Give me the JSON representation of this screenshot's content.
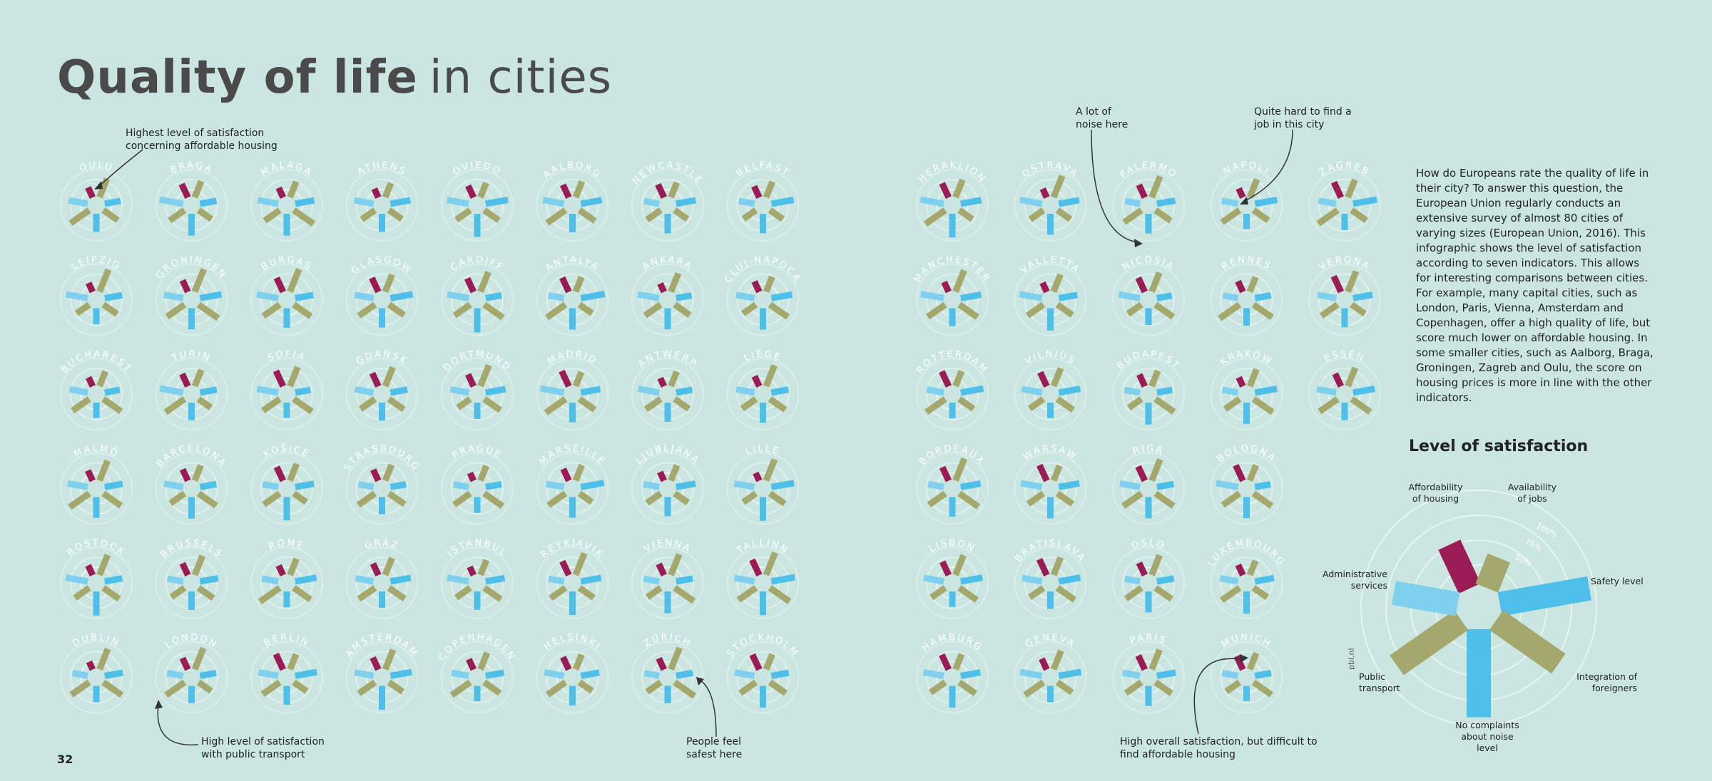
{
  "title": {
    "bold": "Quality of life",
    "light": "in cities"
  },
  "page_number": "32",
  "credit": "pbl.nl",
  "colors": {
    "background": "#cbe6e1",
    "housing": "#9b1b55",
    "olive": "#a5a86d",
    "blue": "#4ebfe9",
    "light_blue": "#7fd0ef",
    "ring": "#eaf6f4"
  },
  "indicators": [
    "Affordability of housing",
    "Availability of jobs",
    "Safety level",
    "Integration of foreigners",
    "No complaints about noise level",
    "Public transport",
    "Administrative services"
  ],
  "cities": [
    [
      "Oulu",
      "Braga",
      "Malaga",
      "Athens",
      "Oviedo",
      "Aalborg",
      "Newcastle",
      "Belfast"
    ],
    [
      "Leipzig",
      "Groningen",
      "Burgas",
      "Glasgow",
      "Cardiff",
      "Antalya",
      "Ankara",
      "Cluj-Napoca"
    ],
    [
      "Bucharest",
      "Turin",
      "Sofia",
      "Gdańsk",
      "Dortmund",
      "Madrid",
      "Antwerp",
      "Liège"
    ],
    [
      "Malmö",
      "Barcelona",
      "Košice",
      "Strasbourg",
      "Prague",
      "Marseille",
      "Ljubljana",
      "Lille"
    ],
    [
      "Rostock",
      "Brussels",
      "Rome",
      "Graz",
      "Istanbul",
      "Reykjavik",
      "Vienna",
      "Tallinn"
    ],
    [
      "Dublin",
      "London",
      "Berlin",
      "Amsterdam",
      "Copenhagen",
      "Helsinki",
      "Zürich",
      "Stockholm"
    ]
  ],
  "cities_right": [
    [
      "Heraklion",
      "Ostrava",
      "Palermo",
      "Napoli",
      "Zagreb"
    ],
    [
      "Manchester",
      "Valletta",
      "Nicosia",
      "Rennes",
      "Verona"
    ],
    [
      "Rotterdam",
      "Vilnius",
      "Budapest",
      "Kraków",
      "Essen"
    ],
    [
      "Bordeaux",
      "Warsaw",
      "Riga",
      "Bologna"
    ],
    [
      "Lisbon",
      "Bratislava",
      "Oslo",
      "Luxembourg"
    ],
    [
      "Hamburg",
      "Geneva",
      "Paris",
      "Munich"
    ]
  ],
  "annotations": {
    "oulu": "Highest level of satisfaction concerning affordable housing",
    "noise": "A lot of noise here",
    "jobs": "Quite hard to find a job in this city",
    "transport": "High level of satisfaction with public transport",
    "safest": "People feel safest here",
    "munich": "High overall satisfaction, but difficult to find affordable housing"
  },
  "description": "How do Europeans rate the quality of life in their city? To answer this question, the European Union regularly conducts an extensive survey of almost 80 cities of varying sizes (European Union, 2016). This infographic shows the level of satisfaction according to seven indicators. This allows for interesting comparisons between cities. For example, many capital cities, such as London, Paris, Vienna, Amsterdam and Copenhagen, offer a high quality of life, but score much lower on affordable housing. In some smaller cities, such as Aalborg, Braga, Groningen, Zagreb and Oulu, the score on housing prices is more in line with the other indicators.",
  "legend": {
    "title": "Level of satisfaction",
    "rings": [
      "100%",
      "75%",
      "50%"
    ],
    "labels": {
      "housing": "Affordability of housing",
      "jobs": "Availability of jobs",
      "safety": "Safety level",
      "integration": "Integration of foreigners",
      "noise": "No complaints about noise level",
      "transport": "Public transport",
      "admin": "Administrative services"
    }
  }
}
